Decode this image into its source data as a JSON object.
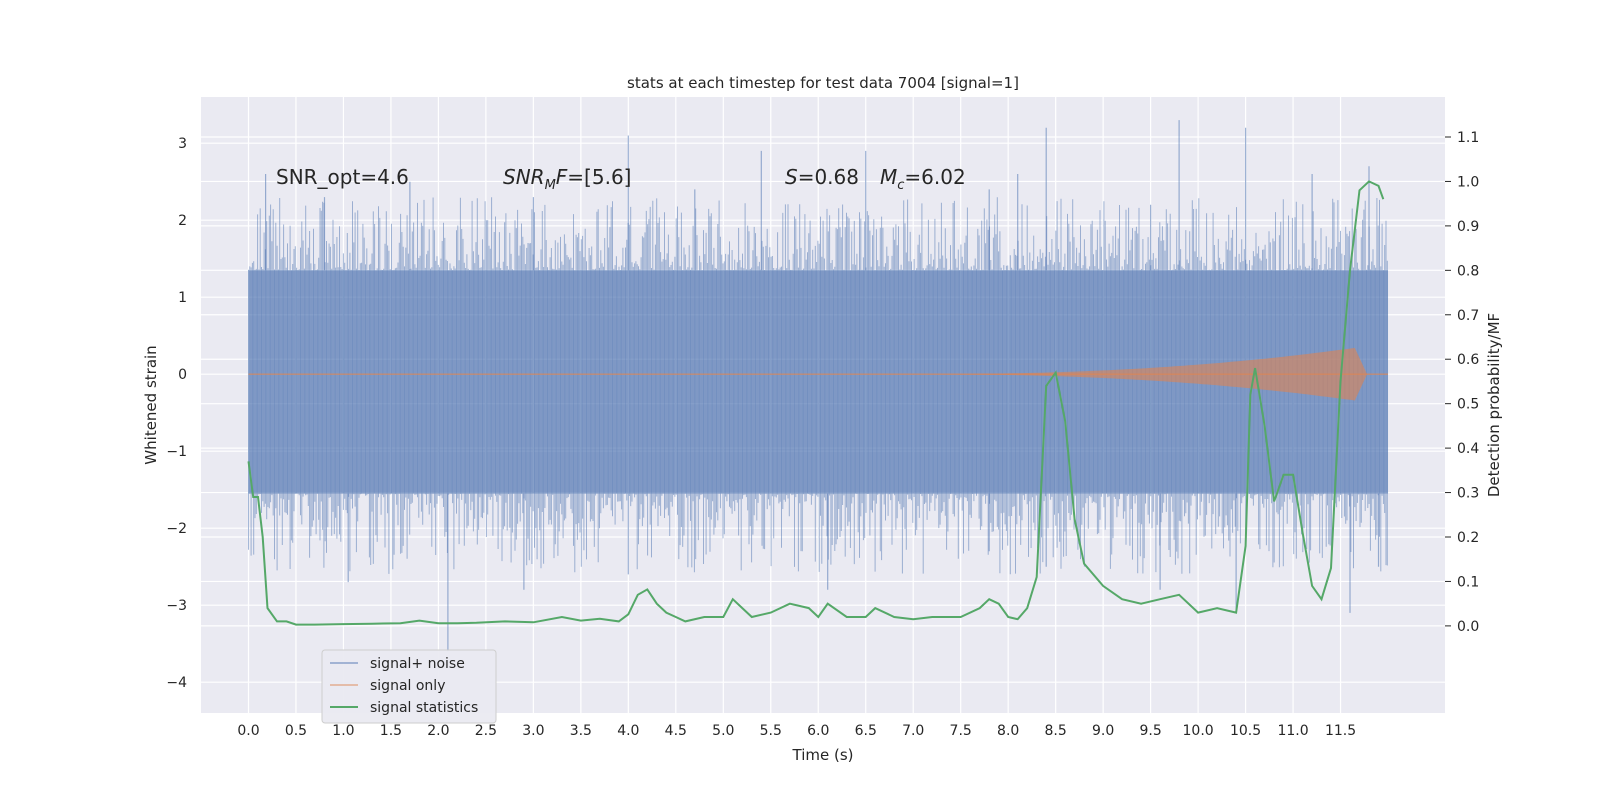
{
  "chart_data": {
    "type": "line",
    "title": "stats at each timestep for test data 7004 [signal=1]",
    "xlabel": "Time (s)",
    "ylabel_left": "Whitened strain",
    "ylabel_right": "Detection probability/MF",
    "xlim": [
      -0.5,
      12.6
    ],
    "ylim_left": [
      -4.4,
      3.6
    ],
    "ylim_right": [
      -0.196,
      1.19
    ],
    "x_ticks": [
      "0.0",
      "0.5",
      "1.0",
      "1.5",
      "2.0",
      "2.5",
      "3.0",
      "3.5",
      "4.0",
      "4.5",
      "5.0",
      "5.5",
      "6.0",
      "6.5",
      "7.0",
      "7.5",
      "8.0",
      "8.5",
      "9.0",
      "9.5",
      "10.0",
      "10.5",
      "11.0",
      "11.5"
    ],
    "y_ticks_left": [
      "3",
      "2",
      "1",
      "0",
      "−1",
      "−2",
      "−3",
      "−4"
    ],
    "y_ticks_right": [
      "1.1",
      "1.0",
      "0.9",
      "0.8",
      "0.7",
      "0.6",
      "0.5",
      "0.4",
      "0.3",
      "0.2",
      "0.1",
      "0.0"
    ],
    "grid": true,
    "legend_position": "lower-left",
    "annotations": {
      "snr_opt": "SNR_opt=4.6",
      "snr_mf": "=[5.6]",
      "spin": "=0.68",
      "mc": "=6.02"
    },
    "noise": {
      "x_range": [
        0.0,
        12.0
      ],
      "band_low": -1.55,
      "band_high": 1.35,
      "spikes_up": [
        [
          0.18,
          2.6
        ],
        [
          0.8,
          2.3
        ],
        [
          1.7,
          2.5
        ],
        [
          3.0,
          2.3
        ],
        [
          4.0,
          3.1
        ],
        [
          4.7,
          2.4
        ],
        [
          5.4,
          2.9
        ],
        [
          6.5,
          2.9
        ],
        [
          7.8,
          2.4
        ],
        [
          8.1,
          2.6
        ],
        [
          8.4,
          3.2
        ],
        [
          9.5,
          2.2
        ],
        [
          9.8,
          3.3
        ],
        [
          10.5,
          3.2
        ],
        [
          11.2,
          2.6
        ],
        [
          11.8,
          2.7
        ]
      ],
      "spikes_down": [
        [
          1.05,
          -2.7
        ],
        [
          2.1,
          -3.6
        ],
        [
          2.9,
          -2.8
        ],
        [
          4.0,
          -2.6
        ],
        [
          6.1,
          -2.8
        ],
        [
          7.8,
          -2.3
        ],
        [
          8.4,
          -2.5
        ],
        [
          9.6,
          -2.8
        ],
        [
          10.4,
          -3.1
        ],
        [
          11.6,
          -3.1
        ],
        [
          11.9,
          -2.5
        ]
      ]
    },
    "signal_only": {
      "x_range": [
        0.0,
        12.0
      ],
      "chirp_peak_x": 11.7,
      "chirp_peak_amp": 0.35
    },
    "series": [
      {
        "name": "signal+ noise",
        "color": "#4c72b0"
      },
      {
        "name": "signal only",
        "color": "#dd8452"
      },
      {
        "name": "signal statistics",
        "color": "#55a868",
        "axis": "right",
        "x": [
          0.0,
          0.05,
          0.1,
          0.15,
          0.2,
          0.3,
          0.4,
          0.5,
          0.7,
          1.0,
          1.3,
          1.6,
          1.8,
          2.0,
          2.2,
          2.4,
          2.7,
          3.0,
          3.3,
          3.5,
          3.7,
          3.9,
          4.0,
          4.1,
          4.2,
          4.3,
          4.4,
          4.5,
          4.6,
          4.8,
          5.0,
          5.1,
          5.2,
          5.3,
          5.5,
          5.7,
          5.9,
          6.0,
          6.1,
          6.3,
          6.5,
          6.6,
          6.8,
          7.0,
          7.2,
          7.5,
          7.7,
          7.8,
          7.9,
          8.0,
          8.1,
          8.2,
          8.3,
          8.4,
          8.5,
          8.6,
          8.7,
          8.8,
          9.0,
          9.2,
          9.4,
          9.6,
          9.8,
          10.0,
          10.2,
          10.4,
          10.5,
          10.55,
          10.6,
          10.7,
          10.8,
          10.9,
          11.0,
          11.1,
          11.2,
          11.3,
          11.4,
          11.5,
          11.6,
          11.7,
          11.8,
          11.9,
          11.95
        ],
        "y": [
          0.37,
          0.29,
          0.29,
          0.2,
          0.04,
          0.01,
          0.01,
          0.003,
          0.003,
          0.004,
          0.005,
          0.006,
          0.012,
          0.006,
          0.006,
          0.007,
          0.01,
          0.008,
          0.02,
          0.012,
          0.016,
          0.01,
          0.026,
          0.07,
          0.082,
          0.05,
          0.03,
          0.02,
          0.01,
          0.02,
          0.02,
          0.06,
          0.04,
          0.02,
          0.03,
          0.05,
          0.04,
          0.02,
          0.05,
          0.02,
          0.02,
          0.04,
          0.02,
          0.015,
          0.02,
          0.02,
          0.04,
          0.06,
          0.05,
          0.02,
          0.015,
          0.04,
          0.11,
          0.54,
          0.57,
          0.46,
          0.24,
          0.14,
          0.09,
          0.06,
          0.05,
          0.06,
          0.07,
          0.03,
          0.04,
          0.03,
          0.18,
          0.52,
          0.58,
          0.45,
          0.28,
          0.34,
          0.34,
          0.21,
          0.09,
          0.06,
          0.13,
          0.55,
          0.8,
          0.98,
          1.0,
          0.99,
          0.96
        ]
      }
    ]
  }
}
